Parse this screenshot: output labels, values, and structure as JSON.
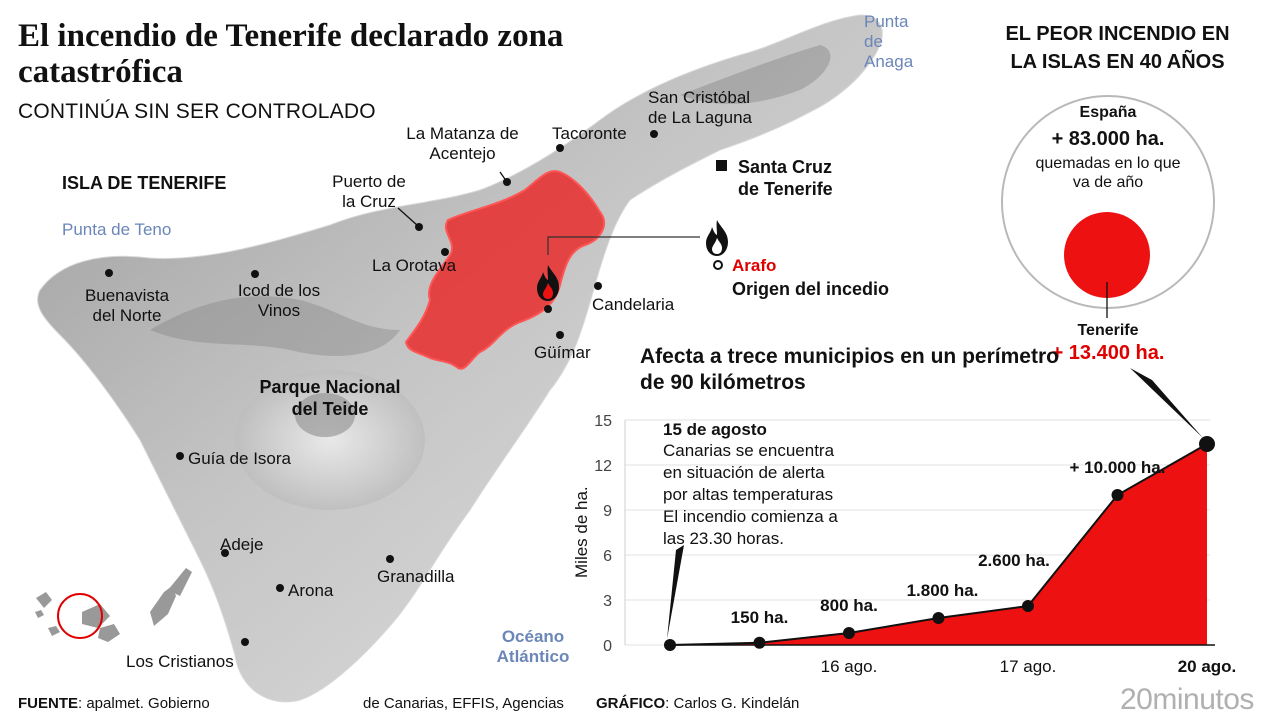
{
  "title": "El incendio de Tenerife declarado zona catastrófica",
  "subtitle": "CONTINÚA SIN SER CONTROLADO",
  "map": {
    "island_label": "ISLA DE TENERIFE",
    "park_label": "Parque Nacional del Teide",
    "ocean_label": "Océano Atlántico",
    "points": {
      "punta_anaga": "Punta de Anaga",
      "punta_teno": "Punta de Teno",
      "san_cristobal": "San Cristóbal de La Laguna",
      "tacoronte": "Tacoronte",
      "la_matanza": "La Matanza de Acentejo",
      "santa_cruz": "Santa Cruz de Tenerife",
      "puerto_cruz": "Puerto de la Cruz",
      "la_orotava": "La Orotava",
      "buenavista": "Buenavista del Norte",
      "icod": "Icod de los Vinos",
      "candelaria": "Candelaria",
      "guimar": "Güímar",
      "guia_isora": "Guía de Isora",
      "adeje": "Adeje",
      "arona": "Arona",
      "granadilla": "Granadilla",
      "los_cristianos": "Los Cristianos"
    },
    "origin_place": "Arafo",
    "origin_text": "Origen del incedio",
    "fire_color": "#ee1111"
  },
  "comparison": {
    "title": "EL PEOR INCENDIO EN LA ISLAS EN 40 AÑOS",
    "spain_label": "España",
    "spain_value": "+ 83.000 ha.",
    "spain_note": "quemadas en lo que va de año",
    "tenerife_label": "Tenerife",
    "tenerife_value": "+ 13.400 ha."
  },
  "chart_title": "Afecta a trece municipios en un perímetro de 90 kilómetros",
  "chart_data": {
    "type": "area",
    "ylabel": "Miles de ha.",
    "ylim": [
      0,
      15
    ],
    "yticks": [
      0,
      3,
      6,
      9,
      12,
      15
    ],
    "x": [
      0,
      1,
      2,
      3,
      4,
      5,
      6
    ],
    "values": [
      0,
      0.15,
      0.8,
      1.8,
      2.6,
      10,
      13.4
    ],
    "xtick_labels": [
      {
        "x": 2,
        "label": "16 ago."
      },
      {
        "x": 4,
        "label": "17 ago."
      },
      {
        "x": 6,
        "label": "20 ago."
      }
    ],
    "data_labels": [
      {
        "x": 1,
        "label": "150 ha."
      },
      {
        "x": 2,
        "label": "800 ha."
      },
      {
        "x": 3,
        "label": "1.800 ha."
      },
      {
        "x": 4,
        "label": "2.600 ha."
      },
      {
        "x": 5,
        "label": "+ 10.000 ha."
      }
    ],
    "annotation_title": "15 de agosto",
    "annotation_lines": [
      "Canarias se encuentra",
      "en situación de alerta",
      "por altas temperaturas",
      "El incendio comienza a",
      "las 23.30 horas."
    ],
    "fill_color": "#ee1111"
  },
  "footer": {
    "source_label": "FUENTE",
    "source_text": ": apalmet. Gobierno",
    "source_text2": "de Canarias, EFFIS, Agencias",
    "graphic_label": "GRÁFICO",
    "graphic_text": ": Carlos G. Kindelán",
    "logo": "20minutos"
  }
}
